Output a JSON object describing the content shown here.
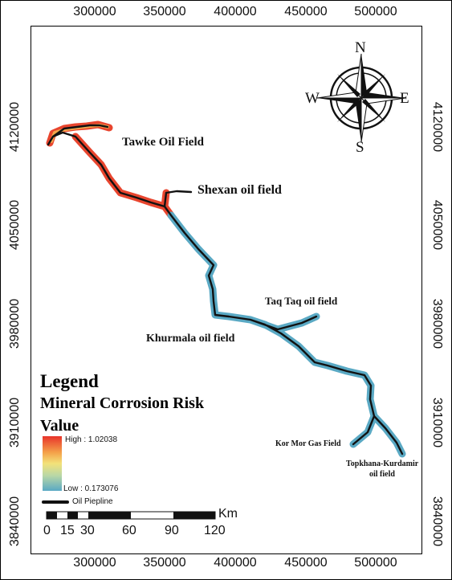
{
  "axes": {
    "x_ticks": [
      "300000",
      "350000",
      "400000",
      "450000",
      "500000"
    ],
    "y_ticks": [
      "4120000",
      "4050000",
      "3980000",
      "3910000",
      "3840000"
    ]
  },
  "compass": {
    "n": "N",
    "s": "S",
    "e": "E",
    "w": "W"
  },
  "places": {
    "tawke": "Tawke Oil Field",
    "shexan": "Shexan oil field",
    "taqtaq": "Taq Taq oil field",
    "khurmala": "Khurmala oil field",
    "kormor": "Kor Mor Gas Field",
    "topkhana_line1": "Topkhana-Kurdamir",
    "topkhana_line2": "oil field"
  },
  "legend": {
    "title": "Legend",
    "subtitle": "Mineral Corrosion Risk",
    "value_label": "Value",
    "high": "High : 1.02038",
    "low": "Low : 0.173076",
    "pipeline": "Oil Piepline",
    "ramp_colors": [
      "#e8332a",
      "#f4a24a",
      "#f3e27a",
      "#b9d7a6",
      "#5aa9c4"
    ]
  },
  "scale_bar": {
    "labels": [
      "0",
      "15",
      "30",
      "60",
      "90",
      "120"
    ],
    "unit": "Km"
  },
  "colors": {
    "high_risk": "#e8332a",
    "mid_risk": "#f3a24a",
    "low_risk": "#5aa9c4",
    "pipeline": "#111111"
  }
}
